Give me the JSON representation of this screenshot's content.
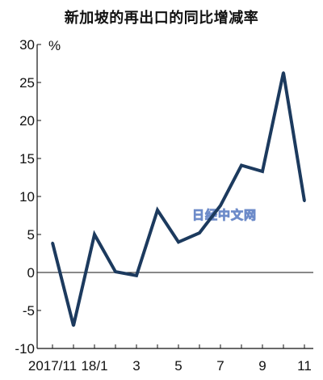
{
  "chart_data": {
    "type": "line",
    "title": "新加坡的再出口的同比增减率",
    "unit": "%",
    "ylim": [
      -10,
      30
    ],
    "yticks": [
      30,
      25,
      20,
      15,
      10,
      5,
      0,
      -5,
      -10
    ],
    "x_tick_labels": [
      {
        "index": 0,
        "label": "2017/11"
      },
      {
        "index": 2,
        "label": "18/1"
      },
      {
        "index": 4,
        "label": "3"
      },
      {
        "index": 6,
        "label": "5"
      },
      {
        "index": 8,
        "label": "7"
      },
      {
        "index": 10,
        "label": "9"
      },
      {
        "index": 12,
        "label": "11"
      }
    ],
    "x": [
      "2017/11",
      "2017/12",
      "2018/1",
      "2018/2",
      "2018/3",
      "2018/4",
      "2018/5",
      "2018/6",
      "2018/7",
      "2018/8",
      "2018/9",
      "2018/10",
      "2018/11"
    ],
    "series": [
      {
        "values": [
          3.9,
          -7.0,
          5.0,
          0.1,
          -0.4,
          8.2,
          4.0,
          5.2,
          8.8,
          14.1,
          13.3,
          26.3,
          9.4
        ]
      }
    ],
    "line_color": "#1c3a5e",
    "grid": false
  },
  "watermark": "日经中文网"
}
